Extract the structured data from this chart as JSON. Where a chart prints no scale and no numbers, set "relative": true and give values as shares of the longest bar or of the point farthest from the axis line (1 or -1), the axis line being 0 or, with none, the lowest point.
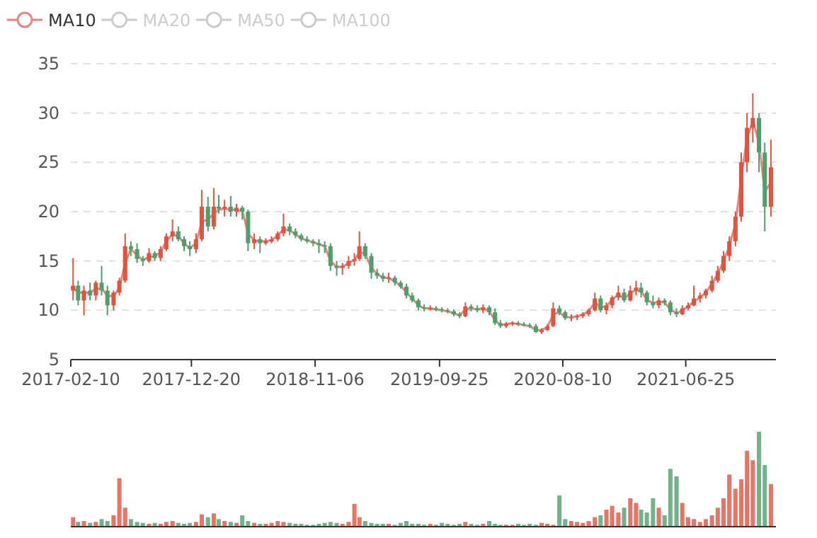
{
  "chart_data": [
    {
      "type": "candlestick",
      "legend": "top left",
      "grid": "y",
      "ylim": [
        5,
        35
      ],
      "yticks": [
        5,
        10,
        15,
        20,
        25,
        30,
        35
      ],
      "xlim": [
        "2017-02-10",
        "2022-02-14"
      ],
      "xticks": [
        "2017-02-10",
        "2017-12-20",
        "2018-11-06",
        "2019-09-25",
        "2020-08-10",
        "2021-06-25"
      ],
      "colors": [
        "#e0533f",
        "#4f9e6b",
        "#e0533f",
        "#4f9e6b",
        "#e0533f",
        "#4f9e6b",
        "#4f9e6b",
        "#e0533f",
        "#e0533f",
        "#e0533f",
        "#4f9e6b",
        "#4f9e6b",
        "#4f9e6b",
        "#e0533f",
        "#4f9e6b",
        "#e0533f",
        "#e0533f",
        "#e0533f",
        "#4f9e6b",
        "#4f9e6b",
        "#4f9e6b",
        "#e0533f",
        "#e0533f",
        "#4f9e6b",
        "#e0533f",
        "#4f9e6b",
        "#e0533f",
        "#4f9e6b",
        "#e0533f",
        "#4f9e6b",
        "#4f9e6b",
        "#e0533f",
        "#4f9e6b",
        "#e0533f",
        "#e0533f",
        "#e0533f",
        "#e0533f",
        "#4f9e6b",
        "#4f9e6b",
        "#4f9e6b",
        "#4f9e6b",
        "#4f9e6b",
        "#4f9e6b",
        "#4f9e6b",
        "#4f9e6b",
        "#4f9e6b",
        "#e0533f",
        "#e0533f",
        "#e0533f",
        "#e0533f",
        "#4f9e6b",
        "#4f9e6b",
        "#4f9e6b",
        "#4f9e6b",
        "#e0533f",
        "#4f9e6b",
        "#4f9e6b",
        "#4f9e6b",
        "#4f9e6b",
        "#4f9e6b",
        "#4f9e6b",
        "#e0533f",
        "#4f9e6b",
        "#4f9e6b",
        "#4f9e6b",
        "#4f9e6b",
        "#4f9e6b",
        "#e0533f",
        "#4f9e6b",
        "#4f9e6b",
        "#e0533f",
        "#4f9e6b",
        "#4f9e6b",
        "#4f9e6b",
        "#e0533f",
        "#e0533f",
        "#4f9e6b",
        "#4f9e6b",
        "#4f9e6b",
        "#4f9e6b",
        "#e0533f",
        "#e0533f",
        "#e0533f",
        "#4f9e6b",
        "#4f9e6b",
        "#e0533f",
        "#e0533f",
        "#e0533f",
        "#e0533f",
        "#e0533f",
        "#4f9e6b",
        "#e0533f",
        "#e0533f",
        "#e0533f",
        "#4f9e6b",
        "#e0533f",
        "#e0533f",
        "#4f9e6b",
        "#4f9e6b",
        "#4f9e6b",
        "#e0533f",
        "#4f9e6b",
        "#4f9e6b",
        "#4f9e6b",
        "#e0533f",
        "#e0533f",
        "#e0533f",
        "#e0533f",
        "#e0533f",
        "#e0533f",
        "#e0533f",
        "#e0533f",
        "#e0533f",
        "#e0533f",
        "#e0533f",
        "#e0533f",
        "#e0533f",
        "#4f9e6b",
        "#4f9e6b",
        "#e0533f"
      ],
      "x": [
        "2017-02-16",
        "2017-03-01",
        "2017-03-16",
        "2017-04-01",
        "2017-04-16",
        "2017-05-01",
        "2017-05-16",
        "2017-06-01",
        "2017-06-16",
        "2017-07-01",
        "2017-07-16",
        "2017-08-01",
        "2017-08-16",
        "2017-09-01",
        "2017-09-16",
        "2017-10-01",
        "2017-10-16",
        "2017-11-01",
        "2017-11-16",
        "2017-12-01",
        "2017-12-16",
        "2018-01-01",
        "2018-01-16",
        "2018-02-01",
        "2018-02-16",
        "2018-03-01",
        "2018-03-16",
        "2018-04-01",
        "2018-04-16",
        "2018-05-01",
        "2018-05-16",
        "2018-06-01",
        "2018-06-16",
        "2018-07-01",
        "2018-07-16",
        "2018-08-01",
        "2018-08-16",
        "2018-09-01",
        "2018-09-16",
        "2018-10-01",
        "2018-10-16",
        "2018-11-01",
        "2018-11-16",
        "2018-12-01",
        "2018-12-16",
        "2019-01-01",
        "2019-01-16",
        "2019-02-01",
        "2019-02-16",
        "2019-03-01",
        "2019-03-16",
        "2019-04-01",
        "2019-04-16",
        "2019-05-01",
        "2019-05-16",
        "2019-06-01",
        "2019-06-16",
        "2019-07-01",
        "2019-07-16",
        "2019-08-01",
        "2019-08-16",
        "2019-09-01",
        "2019-09-16",
        "2019-10-01",
        "2019-10-16",
        "2019-11-01",
        "2019-11-16",
        "2019-12-01",
        "2019-12-16",
        "2020-01-01",
        "2020-01-16",
        "2020-02-01",
        "2020-02-16",
        "2020-03-01",
        "2020-03-16",
        "2020-04-01",
        "2020-04-16",
        "2020-05-01",
        "2020-05-16",
        "2020-06-01",
        "2020-06-16",
        "2020-07-01",
        "2020-07-16",
        "2020-08-01",
        "2020-08-16",
        "2020-09-01",
        "2020-09-16",
        "2020-10-01",
        "2020-10-16",
        "2020-11-01",
        "2020-11-16",
        "2020-12-01",
        "2020-12-16",
        "2021-01-01",
        "2021-01-16",
        "2021-02-01",
        "2021-02-16",
        "2021-03-01",
        "2021-03-16",
        "2021-04-01",
        "2021-04-16",
        "2021-05-01",
        "2021-05-16",
        "2021-06-01",
        "2021-06-16",
        "2021-07-01",
        "2021-07-16",
        "2021-08-01",
        "2021-08-16",
        "2021-09-01",
        "2021-09-16",
        "2021-10-01",
        "2021-10-16",
        "2021-11-01",
        "2021-11-16",
        "2021-12-01",
        "2021-12-16",
        "2022-01-01",
        "2022-01-16",
        "2022-02-01"
      ],
      "ohlc": [
        [
          12,
          15.3,
          11,
          12.5
        ],
        [
          12.5,
          13,
          10.5,
          11
        ],
        [
          11,
          12.5,
          9.5,
          12
        ],
        [
          12,
          12.8,
          11,
          11.5
        ],
        [
          11.5,
          13,
          11,
          12.8
        ],
        [
          12.8,
          14.5,
          11.5,
          12
        ],
        [
          12,
          12.5,
          9.5,
          10.5
        ],
        [
          10.5,
          12,
          10,
          11.8
        ],
        [
          11.8,
          13.3,
          11.5,
          13
        ],
        [
          13,
          17.8,
          12.8,
          16.5
        ],
        [
          16.5,
          17,
          15.5,
          16.2
        ],
        [
          16.2,
          16.8,
          14.8,
          15.2
        ],
        [
          15.2,
          15.5,
          14.5,
          15
        ],
        [
          15,
          16.3,
          14.8,
          15.8
        ],
        [
          15.8,
          16,
          15,
          15.3
        ],
        [
          15.3,
          16.5,
          15,
          16.2
        ],
        [
          16.2,
          17.8,
          16,
          17.5
        ],
        [
          17.5,
          19.2,
          17,
          18
        ],
        [
          18,
          18.5,
          17,
          17.2
        ],
        [
          17.2,
          17.5,
          16,
          16.5
        ],
        [
          16.5,
          17,
          15.5,
          16.2
        ],
        [
          16.2,
          17.8,
          15.8,
          17.2
        ],
        [
          17.2,
          22.2,
          17,
          20.5
        ],
        [
          20.5,
          21.5,
          18,
          18.5
        ],
        [
          18.5,
          22.4,
          18.2,
          20.5
        ],
        [
          20.5,
          21.7,
          19.8,
          20.3
        ],
        [
          20.3,
          21.2,
          19.5,
          20.5
        ],
        [
          20.5,
          21.6,
          19.5,
          20
        ],
        [
          20,
          20.8,
          19.5,
          20.4
        ],
        [
          20.4,
          20.6,
          19.2,
          20
        ],
        [
          20,
          20.2,
          16,
          16.8
        ],
        [
          16.8,
          17.8,
          16.2,
          17.2
        ],
        [
          17.2,
          17.5,
          15.8,
          16.8
        ],
        [
          16.8,
          17.3,
          16.6,
          17
        ],
        [
          17,
          17.5,
          16.8,
          17.2
        ],
        [
          17.2,
          18,
          17,
          17.8
        ],
        [
          17.8,
          19.8,
          17.5,
          18.5
        ],
        [
          18.5,
          18.8,
          17.6,
          18
        ],
        [
          18,
          18.3,
          17.3,
          17.6
        ],
        [
          17.6,
          17.8,
          17,
          17.2
        ],
        [
          17.2,
          17.5,
          16.8,
          17
        ],
        [
          17,
          17.2,
          16.5,
          16.8
        ],
        [
          16.8,
          17.2,
          15.8,
          16.6
        ],
        [
          16.6,
          17,
          15.8,
          16.5
        ],
        [
          16.5,
          16.8,
          14,
          14.5
        ],
        [
          14.5,
          15,
          13.5,
          14.3
        ],
        [
          14.3,
          14.8,
          13.6,
          14.5
        ],
        [
          14.5,
          15.5,
          14.2,
          15
        ],
        [
          15,
          15.8,
          14.5,
          15.2
        ],
        [
          15.2,
          18,
          15,
          16.5
        ],
        [
          16.5,
          16.8,
          15.2,
          15.5
        ],
        [
          15.5,
          15.8,
          13.2,
          13.8
        ],
        [
          13.8,
          14.2,
          13.2,
          13.5
        ],
        [
          13.5,
          13.8,
          12.9,
          13.2
        ],
        [
          13.2,
          13.8,
          12.8,
          13.3
        ],
        [
          13.3,
          13.5,
          12.5,
          12.8
        ],
        [
          12.8,
          13,
          12.2,
          12.4
        ],
        [
          12.4,
          12.7,
          11.2,
          11.5
        ],
        [
          11.5,
          11.8,
          10.8,
          11
        ],
        [
          11,
          11.2,
          10,
          10.3
        ],
        [
          10.3,
          10.6,
          9.9,
          10.2
        ],
        [
          10.2,
          10.5,
          10,
          10.2
        ],
        [
          10.2,
          10.4,
          9.9,
          10.1
        ],
        [
          10.1,
          10.3,
          9.8,
          10
        ],
        [
          10,
          10.2,
          9.7,
          9.9
        ],
        [
          9.9,
          10.1,
          9.4,
          9.6
        ],
        [
          9.6,
          9.8,
          9.2,
          9.4
        ],
        [
          9.4,
          10.8,
          9.3,
          10.4
        ],
        [
          10.4,
          10.6,
          9.9,
          10.2
        ],
        [
          10.2,
          10.5,
          9.8,
          10
        ],
        [
          10,
          10.6,
          9.7,
          10.3
        ],
        [
          10.3,
          10.5,
          9.5,
          9.8
        ],
        [
          9.8,
          10.2,
          8.5,
          8.7
        ],
        [
          8.7,
          9,
          8.2,
          8.4
        ],
        [
          8.4,
          8.8,
          8.2,
          8.6
        ],
        [
          8.6,
          8.9,
          8.4,
          8.7
        ],
        [
          8.7,
          8.9,
          8.4,
          8.6
        ],
        [
          8.6,
          8.8,
          8.4,
          8.5
        ],
        [
          8.5,
          8.7,
          8.2,
          8.4
        ],
        [
          8.4,
          8.6,
          7.7,
          7.8
        ],
        [
          7.8,
          8.2,
          7.6,
          8
        ],
        [
          8,
          8.6,
          7.9,
          8.4
        ],
        [
          8.4,
          10.8,
          8.3,
          10.2
        ],
        [
          10.2,
          10.5,
          9.5,
          9.8
        ],
        [
          9.8,
          10,
          9,
          9.2
        ],
        [
          9.2,
          9.6,
          8.9,
          9.3
        ],
        [
          9.3,
          9.6,
          9,
          9.4
        ],
        [
          9.4,
          9.8,
          9.2,
          9.6
        ],
        [
          9.6,
          10.2,
          9.4,
          10
        ],
        [
          10,
          11.8,
          9.9,
          11.2
        ],
        [
          11.2,
          11.5,
          9.8,
          10
        ],
        [
          10,
          10.8,
          9.6,
          10.5
        ],
        [
          10.5,
          11.5,
          10.2,
          11.3
        ],
        [
          11.3,
          12.5,
          11,
          11.8
        ],
        [
          11.8,
          12.2,
          10.8,
          11
        ],
        [
          11,
          12.5,
          10.9,
          12
        ],
        [
          12,
          13,
          11.5,
          12.3
        ],
        [
          12.3,
          12.8,
          11.3,
          11.8
        ],
        [
          11.8,
          12,
          10.5,
          10.8
        ],
        [
          10.8,
          11.5,
          10.2,
          10.5
        ],
        [
          10.5,
          11.3,
          10.2,
          11
        ],
        [
          11,
          11.2,
          10.5,
          10.8
        ],
        [
          10.8,
          11,
          9.5,
          9.8
        ],
        [
          9.8,
          10.2,
          9.3,
          9.6
        ],
        [
          9.6,
          10.5,
          9.5,
          10.2
        ],
        [
          10.2,
          10.8,
          10,
          10.5
        ],
        [
          10.5,
          12.5,
          10.4,
          11.2
        ],
        [
          11.2,
          11.8,
          10.8,
          11.5
        ],
        [
          11.5,
          12.2,
          11.2,
          12
        ],
        [
          12,
          13.5,
          11.8,
          13
        ],
        [
          13,
          14.5,
          12.8,
          14
        ],
        [
          14,
          16,
          13.8,
          15.5
        ],
        [
          15.5,
          17.5,
          15,
          17
        ],
        [
          17,
          20,
          16.5,
          19.5
        ],
        [
          19.5,
          26,
          19,
          25
        ],
        [
          25,
          30,
          24,
          28.5
        ],
        [
          28.5,
          32,
          27,
          29.5
        ],
        [
          29.5,
          30,
          24,
          26
        ],
        [
          26,
          27,
          18,
          20.5
        ],
        [
          20.5,
          27.3,
          19.5,
          24.5
        ]
      ],
      "series": [
        {
          "name": "MA10",
          "type": "line",
          "color": "#e8857c",
          "values": [
            12.3,
            11.8,
            11.8,
            11.8,
            12.2,
            12.2,
            11.5,
            11.4,
            12.3,
            14.8,
            16.2,
            15.6,
            15.1,
            15.4,
            15.5,
            15.9,
            17,
            17.7,
            17.5,
            16.8,
            16.3,
            16.8,
            19,
            19.2,
            19.8,
            20.2,
            20.3,
            20.2,
            20.2,
            20.1,
            17.8,
            17.1,
            17,
            17,
            17.1,
            17.6,
            18.2,
            18.1,
            17.7,
            17.3,
            17.1,
            16.9,
            16.7,
            16.5,
            15,
            14.4,
            14.4,
            14.8,
            15.1,
            15.9,
            15.7,
            14.3,
            13.7,
            13.3,
            13.3,
            12.9,
            12.5,
            11.8,
            11.2,
            10.5,
            10.2,
            10.2,
            10.1,
            10,
            9.9,
            9.7,
            9.5,
            10.1,
            10.2,
            10.1,
            10.2,
            9.9,
            9,
            8.5,
            8.6,
            8.7,
            8.6,
            8.5,
            8.4,
            8,
            8,
            8.3,
            9.6,
            9.8,
            9.3,
            9.3,
            9.4,
            9.6,
            9.9,
            10.8,
            10.3,
            10.4,
            11.1,
            11.6,
            11.2,
            11.7,
            12.1,
            11.9,
            11.1,
            10.7,
            10.9,
            10.8,
            10.1,
            9.7,
            10,
            10.4,
            10.9,
            11.3,
            11.8,
            12.7,
            13.7,
            15,
            16.5,
            18.8,
            23.5,
            27.5,
            29.2,
            27,
            22,
            23
          ]
        },
        {
          "name": "MA20",
          "type": "line",
          "color": "#cccccc",
          "values": [
            null,
            null,
            null,
            null,
            null,
            null,
            null,
            null,
            null,
            null,
            null,
            null,
            null,
            null,
            null,
            null,
            null,
            null,
            null,
            null,
            null,
            null,
            null,
            null,
            null,
            null,
            null,
            null,
            null,
            null,
            null,
            null,
            null,
            null,
            null,
            null,
            null,
            null,
            null,
            null,
            null,
            null,
            null,
            null,
            null,
            null,
            null,
            null,
            null,
            null,
            null,
            null,
            null,
            null,
            null,
            null,
            null,
            null,
            null,
            null,
            null,
            null,
            null,
            null,
            null,
            null,
            null,
            null,
            null,
            null,
            null,
            null,
            null,
            null,
            null,
            null,
            null,
            null,
            null,
            null,
            null,
            null,
            null,
            null,
            null,
            null,
            null,
            null,
            null,
            null,
            null,
            null,
            null,
            null,
            null,
            null,
            null,
            null,
            null,
            null,
            null,
            null,
            null,
            null,
            null,
            null,
            null,
            null,
            null,
            null,
            null,
            null,
            null,
            null,
            null,
            null,
            null,
            null,
            null,
            null
          ]
        },
        {
          "name": "MA50",
          "type": "line",
          "color": "#cccccc",
          "values": [
            null,
            null,
            null,
            null,
            null,
            null,
            null,
            null,
            null,
            null,
            null,
            null,
            null,
            null,
            null,
            null,
            null,
            null,
            null,
            null,
            null,
            null,
            null,
            null,
            null,
            null,
            null,
            null,
            null,
            null,
            null,
            null,
            null,
            null,
            null,
            null,
            null,
            null,
            null,
            null,
            null,
            null,
            null,
            null,
            null,
            null,
            null,
            null,
            null,
            null,
            null,
            null,
            null,
            null,
            null,
            null,
            null,
            null,
            null,
            null,
            null,
            null,
            null,
            null,
            null,
            null,
            null,
            null,
            null,
            null,
            null,
            null,
            null,
            null,
            null,
            null,
            null,
            null,
            null,
            null,
            null,
            null,
            null,
            null,
            null,
            null,
            null,
            null,
            null,
            null,
            null,
            null,
            null,
            null,
            null,
            null,
            null,
            null,
            null,
            null,
            null,
            null,
            null,
            null,
            null,
            null,
            null,
            null,
            null,
            null,
            null,
            null,
            null,
            null,
            null,
            null,
            null,
            null,
            null,
            null
          ]
        },
        {
          "name": "MA100",
          "type": "line",
          "color": "#cccccc",
          "values": [
            null,
            null,
            null,
            null,
            null,
            null,
            null,
            null,
            null,
            null,
            null,
            null,
            null,
            null,
            null,
            null,
            null,
            null,
            null,
            null,
            null,
            null,
            null,
            null,
            null,
            null,
            null,
            null,
            null,
            null,
            null,
            null,
            null,
            null,
            null,
            null,
            null,
            null,
            null,
            null,
            null,
            null,
            null,
            null,
            null,
            null,
            null,
            null,
            null,
            null,
            null,
            null,
            null,
            null,
            null,
            null,
            null,
            null,
            null,
            null,
            null,
            null,
            null,
            null,
            null,
            null,
            null,
            null,
            null,
            null,
            null,
            null,
            null,
            null,
            null,
            null,
            null,
            null,
            null,
            null,
            null,
            null,
            null,
            null,
            null,
            null,
            null,
            null,
            null,
            null,
            null,
            null,
            null,
            null,
            null,
            null,
            null,
            null,
            null,
            null,
            null,
            null,
            null,
            null,
            null,
            null,
            null,
            null,
            null,
            null,
            null,
            null,
            null,
            null,
            null,
            null,
            null,
            null,
            null,
            null
          ]
        }
      ]
    },
    {
      "type": "bar",
      "relative": true,
      "xlim": [
        "2017-02-10",
        "2022-02-14"
      ],
      "colors": [
        "#e0533f",
        "#4f9e6b",
        "#e0533f",
        "#4f9e6b",
        "#e0533f",
        "#4f9e6b",
        "#4f9e6b",
        "#e0533f",
        "#e0533f",
        "#e0533f",
        "#4f9e6b",
        "#4f9e6b",
        "#4f9e6b",
        "#e0533f",
        "#4f9e6b",
        "#e0533f",
        "#e0533f",
        "#e0533f",
        "#4f9e6b",
        "#4f9e6b",
        "#4f9e6b",
        "#e0533f",
        "#e0533f",
        "#4f9e6b",
        "#e0533f",
        "#4f9e6b",
        "#e0533f",
        "#4f9e6b",
        "#e0533f",
        "#4f9e6b",
        "#4f9e6b",
        "#e0533f",
        "#4f9e6b",
        "#e0533f",
        "#e0533f",
        "#e0533f",
        "#e0533f",
        "#4f9e6b",
        "#4f9e6b",
        "#4f9e6b",
        "#4f9e6b",
        "#4f9e6b",
        "#4f9e6b",
        "#4f9e6b",
        "#4f9e6b",
        "#4f9e6b",
        "#e0533f",
        "#e0533f",
        "#e0533f",
        "#e0533f",
        "#4f9e6b",
        "#4f9e6b",
        "#4f9e6b",
        "#4f9e6b",
        "#e0533f",
        "#4f9e6b",
        "#4f9e6b",
        "#4f9e6b",
        "#4f9e6b",
        "#4f9e6b",
        "#4f9e6b",
        "#e0533f",
        "#4f9e6b",
        "#4f9e6b",
        "#4f9e6b",
        "#4f9e6b",
        "#4f9e6b",
        "#e0533f",
        "#4f9e6b",
        "#4f9e6b",
        "#e0533f",
        "#4f9e6b",
        "#4f9e6b",
        "#4f9e6b",
        "#e0533f",
        "#e0533f",
        "#4f9e6b",
        "#4f9e6b",
        "#4f9e6b",
        "#4f9e6b",
        "#e0533f",
        "#e0533f",
        "#e0533f",
        "#4f9e6b",
        "#4f9e6b",
        "#e0533f",
        "#e0533f",
        "#e0533f",
        "#e0533f",
        "#e0533f",
        "#4f9e6b",
        "#e0533f",
        "#e0533f",
        "#e0533f",
        "#4f9e6b",
        "#e0533f",
        "#e0533f",
        "#4f9e6b",
        "#4f9e6b",
        "#4f9e6b",
        "#e0533f",
        "#4f9e6b",
        "#4f9e6b",
        "#4f9e6b",
        "#e0533f",
        "#e0533f",
        "#e0533f",
        "#e0533f",
        "#e0533f",
        "#e0533f",
        "#e0533f",
        "#e0533f",
        "#e0533f",
        "#e0533f",
        "#e0533f",
        "#e0533f",
        "#e0533f",
        "#4f9e6b",
        "#4f9e6b",
        "#e0533f"
      ],
      "x": [
        "2017-02-16",
        "2017-03-01",
        "2017-03-16",
        "2017-04-01",
        "2017-04-16",
        "2017-05-01",
        "2017-05-16",
        "2017-06-01",
        "2017-06-16",
        "2017-07-01",
        "2017-07-16",
        "2017-08-01",
        "2017-08-16",
        "2017-09-01",
        "2017-09-16",
        "2017-10-01",
        "2017-10-16",
        "2017-11-01",
        "2017-11-16",
        "2017-12-01",
        "2017-12-16",
        "2018-01-01",
        "2018-01-16",
        "2018-02-01",
        "2018-02-16",
        "2018-03-01",
        "2018-03-16",
        "2018-04-01",
        "2018-04-16",
        "2018-05-01",
        "2018-05-16",
        "2018-06-01",
        "2018-06-16",
        "2018-07-01",
        "2018-07-16",
        "2018-08-01",
        "2018-08-16",
        "2018-09-01",
        "2018-09-16",
        "2018-10-01",
        "2018-10-16",
        "2018-11-01",
        "2018-11-16",
        "2018-12-01",
        "2018-12-16",
        "2019-01-01",
        "2019-01-16",
        "2019-02-01",
        "2019-02-16",
        "2019-03-01",
        "2019-03-16",
        "2019-04-01",
        "2019-04-16",
        "2019-05-01",
        "2019-05-16",
        "2019-06-01",
        "2019-06-16",
        "2019-07-01",
        "2019-07-16",
        "2019-08-01",
        "2019-08-16",
        "2019-09-01",
        "2019-09-16",
        "2019-10-01",
        "2019-10-16",
        "2019-11-01",
        "2019-11-16",
        "2019-12-01",
        "2019-12-16",
        "2020-01-01",
        "2020-01-16",
        "2020-02-01",
        "2020-02-16",
        "2020-03-01",
        "2020-03-16",
        "2020-04-01",
        "2020-04-16",
        "2020-05-01",
        "2020-05-16",
        "2020-06-01",
        "2020-06-16",
        "2020-07-01",
        "2020-07-16",
        "2020-08-01",
        "2020-08-16",
        "2020-09-01",
        "2020-09-16",
        "2020-10-01",
        "2020-10-16",
        "2020-11-01",
        "2020-11-16",
        "2020-12-01",
        "2020-12-16",
        "2021-01-01",
        "2021-01-16",
        "2021-02-01",
        "2021-02-16",
        "2021-03-01",
        "2021-03-16",
        "2021-04-01",
        "2021-04-16",
        "2021-05-01",
        "2021-05-16",
        "2021-06-01",
        "2021-06-16",
        "2021-07-01",
        "2021-07-16",
        "2021-08-01",
        "2021-08-16",
        "2021-09-01",
        "2021-09-16",
        "2021-10-01",
        "2021-10-16",
        "2021-11-01",
        "2021-11-16",
        "2021-12-01",
        "2021-12-16",
        "2022-01-01",
        "2022-01-16",
        "2022-02-01"
      ],
      "values": [
        0.1,
        0.05,
        0.06,
        0.04,
        0.05,
        0.08,
        0.06,
        0.12,
        0.51,
        0.2,
        0.08,
        0.05,
        0.04,
        0.03,
        0.04,
        0.03,
        0.05,
        0.06,
        0.04,
        0.03,
        0.04,
        0.05,
        0.13,
        0.1,
        0.14,
        0.08,
        0.06,
        0.05,
        0.04,
        0.12,
        0.06,
        0.04,
        0.03,
        0.03,
        0.04,
        0.06,
        0.05,
        0.04,
        0.03,
        0.03,
        0.02,
        0.02,
        0.03,
        0.04,
        0.05,
        0.04,
        0.03,
        0.05,
        0.24,
        0.1,
        0.06,
        0.04,
        0.03,
        0.03,
        0.03,
        0.02,
        0.04,
        0.06,
        0.03,
        0.03,
        0.02,
        0.03,
        0.02,
        0.04,
        0.03,
        0.02,
        0.03,
        0.05,
        0.03,
        0.02,
        0.03,
        0.06,
        0.03,
        0.02,
        0.02,
        0.02,
        0.03,
        0.02,
        0.03,
        0.02,
        0.04,
        0.03,
        0.02,
        0.33,
        0.08,
        0.06,
        0.05,
        0.04,
        0.06,
        0.1,
        0.12,
        0.18,
        0.22,
        0.15,
        0.2,
        0.3,
        0.25,
        0.18,
        0.15,
        0.3,
        0.2,
        0.12,
        0.61,
        0.53,
        0.25,
        0.1,
        0.08,
        0.05,
        0.08,
        0.12,
        0.2,
        0.3,
        0.55,
        0.4,
        0.5,
        0.8,
        0.7,
        1,
        0.65,
        0.45
      ]
    }
  ]
}
